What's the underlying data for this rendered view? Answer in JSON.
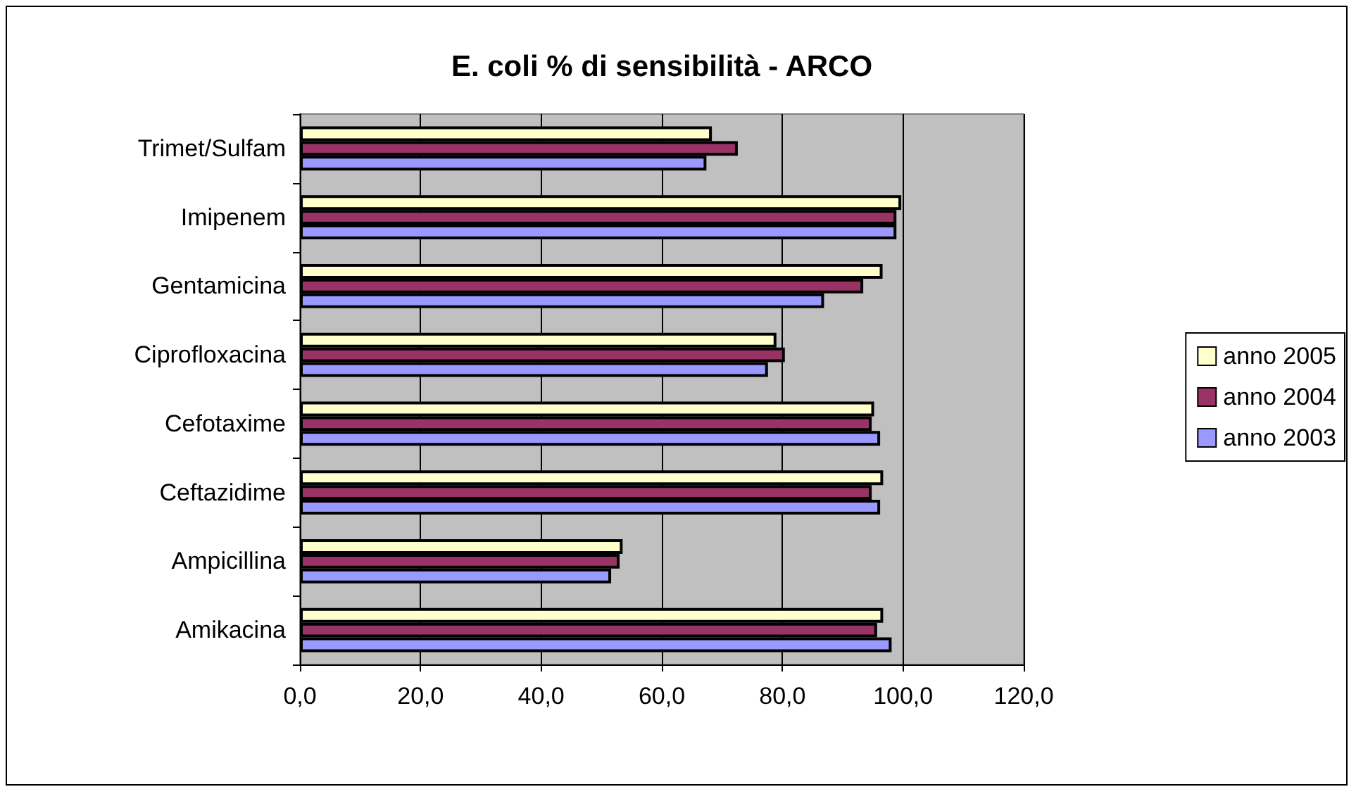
{
  "chart_data": {
    "type": "bar",
    "orientation": "horizontal",
    "title": "E. coli % di sensibilità - ARCO",
    "categories": [
      "Trimet/Sulfam",
      "Imipenem",
      "Gentamicina",
      "Ciprofloxacina",
      "Cefotaxime",
      "Ceftazidime",
      "Ampicillina",
      "Amikacina"
    ],
    "series": [
      {
        "name": "anno 2005",
        "color": "#ffffcc",
        "values": [
          68.3,
          99.7,
          96.6,
          79.0,
          95.2,
          96.7,
          53.5,
          96.7
        ]
      },
      {
        "name": "anno 2004",
        "color": "#993366",
        "values": [
          72.6,
          98.9,
          93.4,
          80.4,
          94.8,
          94.8,
          53.0,
          95.7
        ]
      },
      {
        "name": "anno 2003",
        "color": "#9999ff",
        "values": [
          67.4,
          98.9,
          86.9,
          77.6,
          96.2,
          96.2,
          51.6,
          98.1
        ]
      }
    ],
    "xlim": [
      0,
      120
    ],
    "xticks": [
      {
        "value": 0,
        "label": "0,0"
      },
      {
        "value": 20,
        "label": "20,0"
      },
      {
        "value": 40,
        "label": "40,0"
      },
      {
        "value": 60,
        "label": "60,0"
      },
      {
        "value": 80,
        "label": "80,0"
      },
      {
        "value": 100,
        "label": "100,0"
      },
      {
        "value": 120,
        "label": "120,0"
      }
    ],
    "grid": "x",
    "legend": "right"
  }
}
